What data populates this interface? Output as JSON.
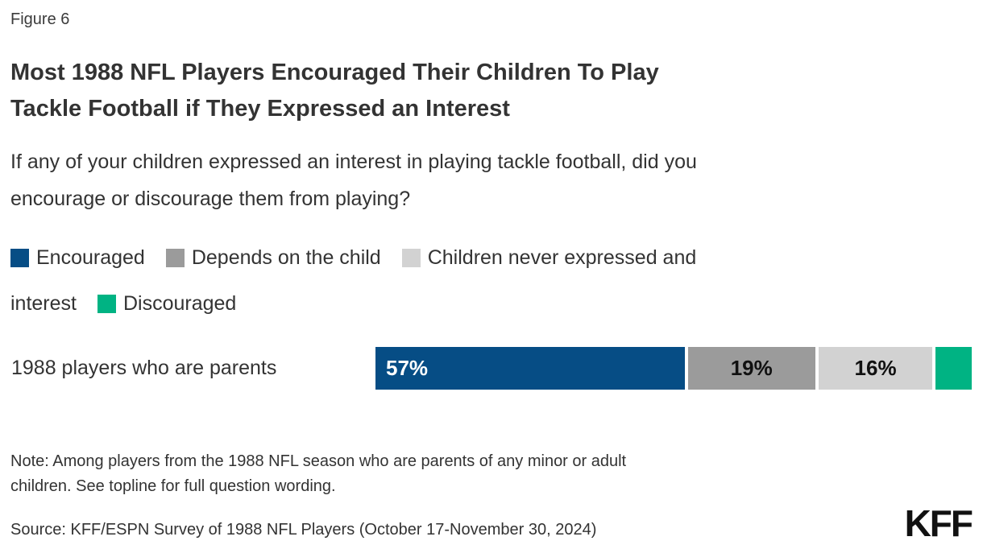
{
  "figure_label": "Figure 6",
  "title": "Most 1988 NFL Players Encouraged Their Children To Play Tackle Football if They Expressed an Interest",
  "title_lines": {
    "line1": "Most 1988 NFL Players Encouraged Their Children To Play",
    "line2": "Tackle Football if They Expressed an Interest"
  },
  "question": "If any of your children expressed an interest in playing tackle football, did you encourage or discourage them from playing?",
  "question_lines": {
    "line1": "If any of your children expressed an interest in playing tackle football, did you",
    "line2": "encourage or discourage them from playing?"
  },
  "legend": {
    "items": [
      {
        "label": "Encouraged",
        "color": "#064D85"
      },
      {
        "label": "Depends on the child",
        "color": "#9B9B9B"
      },
      {
        "label": "Children never expressed and interest",
        "color": "#D2D2D2"
      },
      {
        "label": "Discouraged",
        "color": "#00B383"
      }
    ],
    "wrap": {
      "line1_item3_text": "Children never expressed and",
      "line2_item3_text": "interest"
    }
  },
  "bar": {
    "row_label": "1988 players who are parents",
    "segments": [
      {
        "name": "Encouraged",
        "value": 57,
        "display": "57%",
        "color": "#064D85",
        "text_color": "#FFFFFF"
      },
      {
        "name": "Depends on the child",
        "value": 19,
        "display": "19%",
        "color": "#9B9B9B",
        "text_color": "#111111"
      },
      {
        "name": "Children never expressed and interest",
        "value": 16,
        "display": "16%",
        "color": "#D2D2D2",
        "text_color": "#111111"
      },
      {
        "name": "Discouraged",
        "value": 8,
        "display": "",
        "color": "#00B383",
        "text_color": "#111111"
      }
    ]
  },
  "note": "Note: Among players from the 1988 NFL season who are parents of any minor or adult children. See topline for full question wording.",
  "note_lines": {
    "line1": "Note: Among players from the 1988 NFL season who are parents of any minor or adult",
    "line2": "children. See topline for full question wording."
  },
  "source": "Source: KFF/ESPN Survey of 1988 NFL Players (October 17-November 30, 2024)",
  "logo_text": "KFF",
  "chart_data": {
    "type": "bar",
    "orientation": "horizontal-stacked",
    "title": "Most 1988 NFL Players Encouraged Their Children To Play Tackle Football if They Expressed an Interest",
    "subtitle": "If any of your children expressed an interest in playing tackle football, did you encourage or discourage them from playing?",
    "categories": [
      "1988 players who are parents"
    ],
    "series": [
      {
        "name": "Encouraged",
        "values": [
          57
        ],
        "color": "#064D85",
        "data_label": "57%"
      },
      {
        "name": "Depends on the child",
        "values": [
          19
        ],
        "color": "#9B9B9B",
        "data_label": "19%"
      },
      {
        "name": "Children never expressed and interest",
        "values": [
          16
        ],
        "color": "#D2D2D2",
        "data_label": "16%"
      },
      {
        "name": "Discouraged",
        "values": [
          8
        ],
        "color": "#00B383",
        "data_label": "",
        "value_estimated_from_remainder": true
      }
    ],
    "xlim": [
      0,
      100
    ],
    "grid": false,
    "legend_position": "top",
    "note": "Note: Among players from the 1988 NFL season who are parents of any minor or adult children. See topline for full question wording.",
    "source": "Source: KFF/ESPN Survey of 1988 NFL Players (October 17-November 30, 2024)"
  }
}
